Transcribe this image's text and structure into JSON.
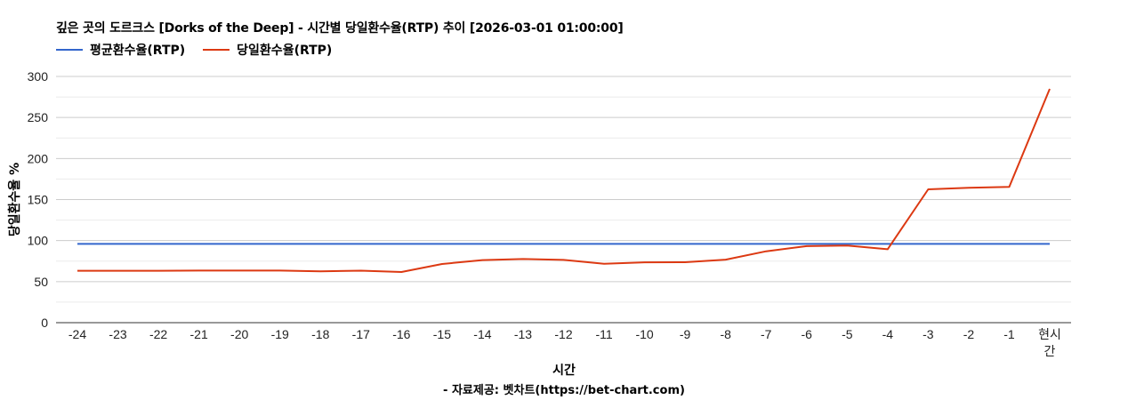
{
  "chart_data": {
    "type": "line",
    "title": "깊은 곳의 도르크스 [Dorks of the Deep] - 시간별 당일환수율(RTP) 추이 [2026-03-01 01:00:00]",
    "xlabel": "시간",
    "ylabel": "당일환수율 %",
    "credit": "- 자료제공: 벳차트(https://bet-chart.com)",
    "ylim": [
      0,
      300
    ],
    "yticks": [
      0,
      50,
      100,
      150,
      200,
      250,
      300
    ],
    "grid": true,
    "legend_position": "top-left",
    "categories": [
      "-24",
      "-23",
      "-22",
      "-21",
      "-20",
      "-19",
      "-18",
      "-17",
      "-16",
      "-15",
      "-14",
      "-13",
      "-12",
      "-11",
      "-10",
      "-9",
      "-8",
      "-7",
      "-6",
      "-5",
      "-4",
      "-3",
      "-2",
      "-1",
      "현시간"
    ],
    "series": [
      {
        "name": "평균환수율(RTP)",
        "color": "#3366cc",
        "values": [
          96,
          96,
          96,
          96,
          96,
          96,
          96,
          96,
          96,
          96,
          96,
          96,
          96,
          96,
          96,
          96,
          96,
          96,
          96,
          96,
          96,
          96,
          96,
          96,
          96
        ]
      },
      {
        "name": "당일환수율(RTP)",
        "color": "#dc3912",
        "values": [
          63.2,
          63.3,
          63.3,
          63.5,
          63.5,
          63.5,
          62.6,
          63.4,
          61.7,
          71.5,
          76.2,
          77.5,
          76.5,
          71.7,
          73.5,
          73.6,
          76.8,
          87.0,
          93.2,
          93.9,
          89.5,
          162.5,
          164.3,
          165.4,
          284.8
        ]
      }
    ]
  }
}
